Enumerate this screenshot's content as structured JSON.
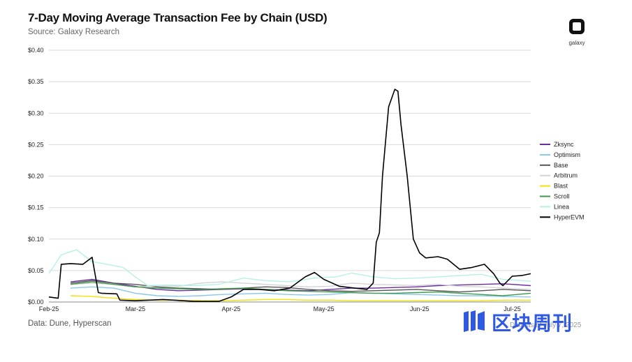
{
  "header": {
    "title": "7-Day Moving Average Transaction Fee by Chain (USD)",
    "subtitle": "Source: Galaxy Research"
  },
  "logo": {
    "icon": "galaxy-logo-icon",
    "word": "galaxy"
  },
  "footer": {
    "source": "Data: Dune, Hyperscan"
  },
  "watermark": {
    "text": "区块周刊",
    "icon": "bars-logo-icon",
    "underlay": "Data as of July 7, 2025"
  },
  "chart_data": {
    "type": "line",
    "title": "7-Day Moving Average Transaction Fee by Chain (USD)",
    "xlabel": "",
    "ylabel": "",
    "ylim": [
      0,
      0.4
    ],
    "y_ticks": [
      "$0.00",
      "$0.05",
      "$0.10",
      "$0.15",
      "$0.20",
      "$0.25",
      "$0.30",
      "$0.35",
      "$0.40"
    ],
    "x_ticks": [
      "Feb-25",
      "Mar-25",
      "Apr-25",
      "May-25",
      "Jun-25",
      "Jul-25"
    ],
    "grid": true,
    "legend_position": "right",
    "x_start": "2025-02-01",
    "x_end": "2025-07-07",
    "series": [
      {
        "name": "Zksync",
        "color": "#6a2ea0",
        "dates": [
          "2025-02-08",
          "2025-02-15",
          "2025-02-22",
          "2025-03-01",
          "2025-03-08",
          "2025-03-15",
          "2025-03-22",
          "2025-03-29",
          "2025-04-05",
          "2025-04-12",
          "2025-04-19",
          "2025-04-26",
          "2025-05-03",
          "2025-05-10",
          "2025-05-17",
          "2025-05-24",
          "2025-05-31",
          "2025-06-07",
          "2025-06-14",
          "2025-06-21",
          "2025-06-28",
          "2025-07-07"
        ],
        "values": [
          0.032,
          0.036,
          0.03,
          0.025,
          0.02,
          0.018,
          0.019,
          0.02,
          0.021,
          0.02,
          0.019,
          0.018,
          0.02,
          0.022,
          0.022,
          0.023,
          0.024,
          0.026,
          0.027,
          0.028,
          0.029,
          0.026
        ]
      },
      {
        "name": "Optimism",
        "color": "#87c8ea",
        "dates": [
          "2025-02-08",
          "2025-02-15",
          "2025-02-22",
          "2025-03-01",
          "2025-03-08",
          "2025-03-15",
          "2025-03-22",
          "2025-03-29",
          "2025-04-05",
          "2025-04-12",
          "2025-04-19",
          "2025-04-26",
          "2025-05-03",
          "2025-05-10",
          "2025-05-17",
          "2025-05-24",
          "2025-05-31",
          "2025-06-07",
          "2025-06-14",
          "2025-06-21",
          "2025-06-28",
          "2025-07-07"
        ],
        "values": [
          0.022,
          0.024,
          0.022,
          0.014,
          0.01,
          0.009,
          0.01,
          0.012,
          0.013,
          0.014,
          0.012,
          0.011,
          0.012,
          0.015,
          0.014,
          0.013,
          0.012,
          0.011,
          0.01,
          0.01,
          0.009,
          0.008
        ]
      },
      {
        "name": "Base",
        "color": "#555555",
        "dates": [
          "2025-02-08",
          "2025-02-15",
          "2025-02-22",
          "2025-03-01",
          "2025-03-08",
          "2025-03-15",
          "2025-03-22",
          "2025-03-29",
          "2025-04-05",
          "2025-04-12",
          "2025-04-19",
          "2025-04-26",
          "2025-05-03",
          "2025-05-10",
          "2025-05-17",
          "2025-05-24",
          "2025-05-31",
          "2025-06-07",
          "2025-06-14",
          "2025-06-21",
          "2025-06-28",
          "2025-07-07"
        ],
        "values": [
          0.03,
          0.034,
          0.03,
          0.028,
          0.024,
          0.022,
          0.021,
          0.02,
          0.022,
          0.024,
          0.023,
          0.02,
          0.018,
          0.017,
          0.018,
          0.019,
          0.02,
          0.018,
          0.016,
          0.018,
          0.02,
          0.018
        ]
      },
      {
        "name": "Arbitrum",
        "color": "#d3d3d3",
        "dates": [
          "2025-02-08",
          "2025-02-15",
          "2025-02-22",
          "2025-03-01",
          "2025-03-08",
          "2025-03-15",
          "2025-03-22",
          "2025-03-29",
          "2025-04-05",
          "2025-04-12",
          "2025-04-19",
          "2025-04-26",
          "2025-05-03",
          "2025-05-10",
          "2025-05-17",
          "2025-05-24",
          "2025-05-31",
          "2025-06-07",
          "2025-06-14",
          "2025-06-21",
          "2025-06-28",
          "2025-07-07"
        ],
        "values": [
          0.028,
          0.03,
          0.028,
          0.024,
          0.026,
          0.025,
          0.03,
          0.032,
          0.03,
          0.028,
          0.026,
          0.024,
          0.025,
          0.03,
          0.028,
          0.027,
          0.026,
          0.028,
          0.025,
          0.024,
          0.022,
          0.02
        ]
      },
      {
        "name": "Blast",
        "color": "#f2e205",
        "dates": [
          "2025-02-08",
          "2025-02-15",
          "2025-02-22",
          "2025-03-01",
          "2025-03-08",
          "2025-03-15",
          "2025-03-22",
          "2025-03-29",
          "2025-04-05",
          "2025-04-12",
          "2025-04-19",
          "2025-04-26",
          "2025-05-03",
          "2025-05-10",
          "2025-05-17",
          "2025-05-24",
          "2025-05-31",
          "2025-06-07",
          "2025-06-14",
          "2025-06-21",
          "2025-06-28",
          "2025-07-07"
        ],
        "values": [
          0.01,
          0.009,
          0.006,
          0.004,
          0.003,
          0.003,
          0.002,
          0.002,
          0.003,
          0.004,
          0.004,
          0.003,
          0.003,
          0.002,
          0.002,
          0.002,
          0.002,
          0.002,
          0.002,
          0.002,
          0.003,
          0.003
        ]
      },
      {
        "name": "Scroll",
        "color": "#3f9a4b",
        "dates": [
          "2025-02-08",
          "2025-02-15",
          "2025-02-22",
          "2025-03-01",
          "2025-03-08",
          "2025-03-15",
          "2025-03-22",
          "2025-03-29",
          "2025-04-05",
          "2025-04-12",
          "2025-04-19",
          "2025-04-26",
          "2025-05-03",
          "2025-05-10",
          "2025-05-17",
          "2025-05-24",
          "2025-05-31",
          "2025-06-07",
          "2025-06-14",
          "2025-06-21",
          "2025-06-28",
          "2025-07-07"
        ],
        "values": [
          0.028,
          0.032,
          0.028,
          0.024,
          0.022,
          0.021,
          0.02,
          0.021,
          0.022,
          0.02,
          0.018,
          0.017,
          0.016,
          0.015,
          0.014,
          0.014,
          0.015,
          0.016,
          0.014,
          0.012,
          0.01,
          0.014
        ]
      },
      {
        "name": "Linea",
        "color": "#b6f0e6",
        "dates": [
          "2025-02-01",
          "2025-02-05",
          "2025-02-10",
          "2025-02-15",
          "2025-02-20",
          "2025-02-25",
          "2025-03-01",
          "2025-03-05",
          "2025-03-12",
          "2025-03-20",
          "2025-03-28",
          "2025-04-05",
          "2025-04-12",
          "2025-04-20",
          "2025-04-28",
          "2025-05-05",
          "2025-05-10",
          "2025-05-17",
          "2025-05-24",
          "2025-05-31",
          "2025-06-07",
          "2025-06-14",
          "2025-06-21",
          "2025-06-28",
          "2025-07-07"
        ],
        "values": [
          0.045,
          0.075,
          0.083,
          0.064,
          0.06,
          0.055,
          0.04,
          0.026,
          0.027,
          0.026,
          0.028,
          0.038,
          0.034,
          0.032,
          0.038,
          0.04,
          0.046,
          0.04,
          0.037,
          0.038,
          0.04,
          0.042,
          0.044,
          0.036,
          0.033
        ]
      },
      {
        "name": "HyperEVM",
        "color": "#000000",
        "dates": [
          "2025-02-01",
          "2025-02-04",
          "2025-02-05",
          "2025-02-08",
          "2025-02-12",
          "2025-02-15",
          "2025-02-17",
          "2025-02-18",
          "2025-02-23",
          "2025-02-24",
          "2025-03-01",
          "2025-03-10",
          "2025-03-20",
          "2025-03-28",
          "2025-04-01",
          "2025-04-05",
          "2025-04-10",
          "2025-04-15",
          "2025-04-20",
          "2025-04-25",
          "2025-04-28",
          "2025-05-01",
          "2025-05-06",
          "2025-05-11",
          "2025-05-15",
          "2025-05-17",
          "2025-05-18",
          "2025-05-19",
          "2025-05-20",
          "2025-05-22",
          "2025-05-24",
          "2025-05-25",
          "2025-05-26",
          "2025-05-28",
          "2025-05-30",
          "2025-06-01",
          "2025-06-03",
          "2025-06-07",
          "2025-06-10",
          "2025-06-14",
          "2025-06-18",
          "2025-06-22",
          "2025-06-25",
          "2025-06-27",
          "2025-06-28",
          "2025-07-01",
          "2025-07-04",
          "2025-07-07"
        ],
        "values": [
          0.008,
          0.006,
          0.06,
          0.061,
          0.06,
          0.071,
          0.015,
          0.014,
          0.013,
          0.003,
          0.002,
          0.004,
          0.001,
          0.001,
          0.008,
          0.02,
          0.02,
          0.018,
          0.022,
          0.04,
          0.047,
          0.036,
          0.025,
          0.022,
          0.02,
          0.03,
          0.095,
          0.11,
          0.2,
          0.31,
          0.338,
          0.335,
          0.282,
          0.2,
          0.1,
          0.078,
          0.07,
          0.072,
          0.068,
          0.052,
          0.055,
          0.06,
          0.045,
          0.03,
          0.026,
          0.041,
          0.042,
          0.045
        ]
      }
    ]
  }
}
